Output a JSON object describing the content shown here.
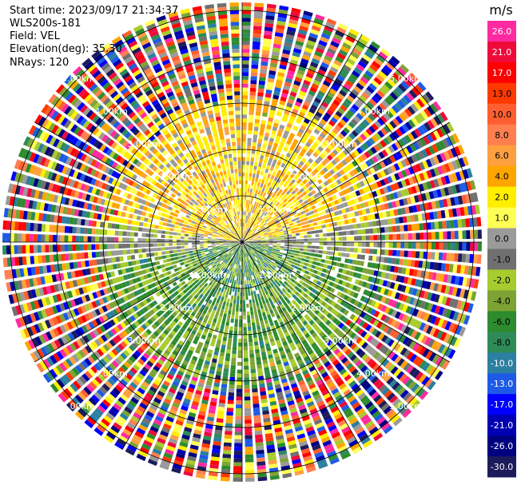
{
  "header": {
    "start_time": "Start time: 2023/09/17 21:34:37",
    "instrument": "WLS200s-181",
    "field": "Field: VEL",
    "elevation": "Elevation(deg): 35.30",
    "nrays": "NRays: 120"
  },
  "ppi": {
    "n_rays": 120,
    "range_rings_km": [
      "1.00km",
      "2.00km",
      "3.00km",
      "4.00km",
      "5.00km"
    ],
    "colors": {
      "background": "#ffffff",
      "ring_line": "#000000"
    }
  },
  "colorbar": {
    "unit": "m/s",
    "labels": [
      "26.0",
      "21.0",
      "17.0",
      "13.0",
      "10.0",
      "8.0",
      "6.0",
      "4.0",
      "2.0",
      "1.0",
      "0.0",
      "-1.0",
      "-2.0",
      "-4.0",
      "-6.0",
      "-8.0",
      "-10.0",
      "-13.0",
      "-17.0",
      "-21.0",
      "-26.0",
      "-30.0"
    ],
    "colors": [
      "#ff2aa0",
      "#ee0b3a",
      "#ff0000",
      "#ff3a00",
      "#ff5f30",
      "#ff7f50",
      "#ffa040",
      "#ffa500",
      "#ffee00",
      "#ffff55",
      "#9a9a9a",
      "#707070",
      "#a6cc2f",
      "#7da335",
      "#2e8b2e",
      "#2e8b57",
      "#2b7fa0",
      "#1e5ae6",
      "#0000ff",
      "#0000b3",
      "#000080",
      "#1c1c5c"
    ]
  }
}
